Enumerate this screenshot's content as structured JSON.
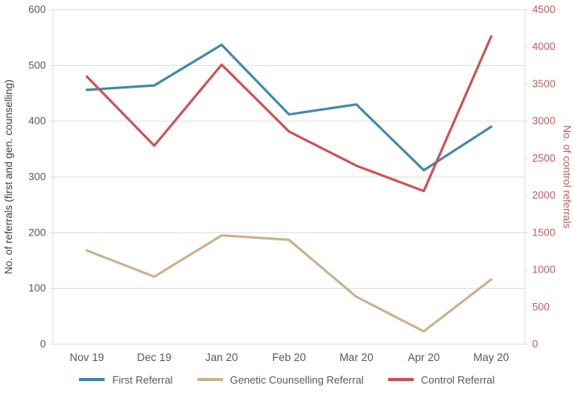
{
  "chart_data": {
    "type": "line",
    "categories": [
      "Nov 19",
      "Dec 19",
      "Jan 20",
      "Feb 20",
      "Mar 20",
      "Apr 20",
      "May 20"
    ],
    "series": [
      {
        "name": "First Referral",
        "axis": "left",
        "color": "#3e89ab",
        "values": [
          456,
          464,
          537,
          412,
          430,
          312,
          390
        ]
      },
      {
        "name": "Genetic Counselling Referral",
        "axis": "left",
        "color": "#c9b28c",
        "values": [
          168,
          121,
          195,
          187,
          85,
          23,
          116
        ]
      },
      {
        "name": "Control Referral",
        "axis": "right",
        "color": "#d04f52",
        "values": [
          3600,
          2670,
          3760,
          2860,
          2400,
          2060,
          4140
        ]
      }
    ],
    "left_axis": {
      "label": "No. of referrals (first and gen. counselling)",
      "min": 0,
      "max": 600,
      "step": 100,
      "text_color": "#595959",
      "title_color": "#404040"
    },
    "right_axis": {
      "label": "No. of control referrals",
      "min": 0,
      "max": 4500,
      "step": 500,
      "text_color": "#c4595a",
      "title_color": "#c4595a"
    },
    "grid": true,
    "grid_color": "#d3e0e8",
    "x_axis_text_color": "#595959",
    "legend_position": "bottom",
    "title": "",
    "line_width": 3
  }
}
